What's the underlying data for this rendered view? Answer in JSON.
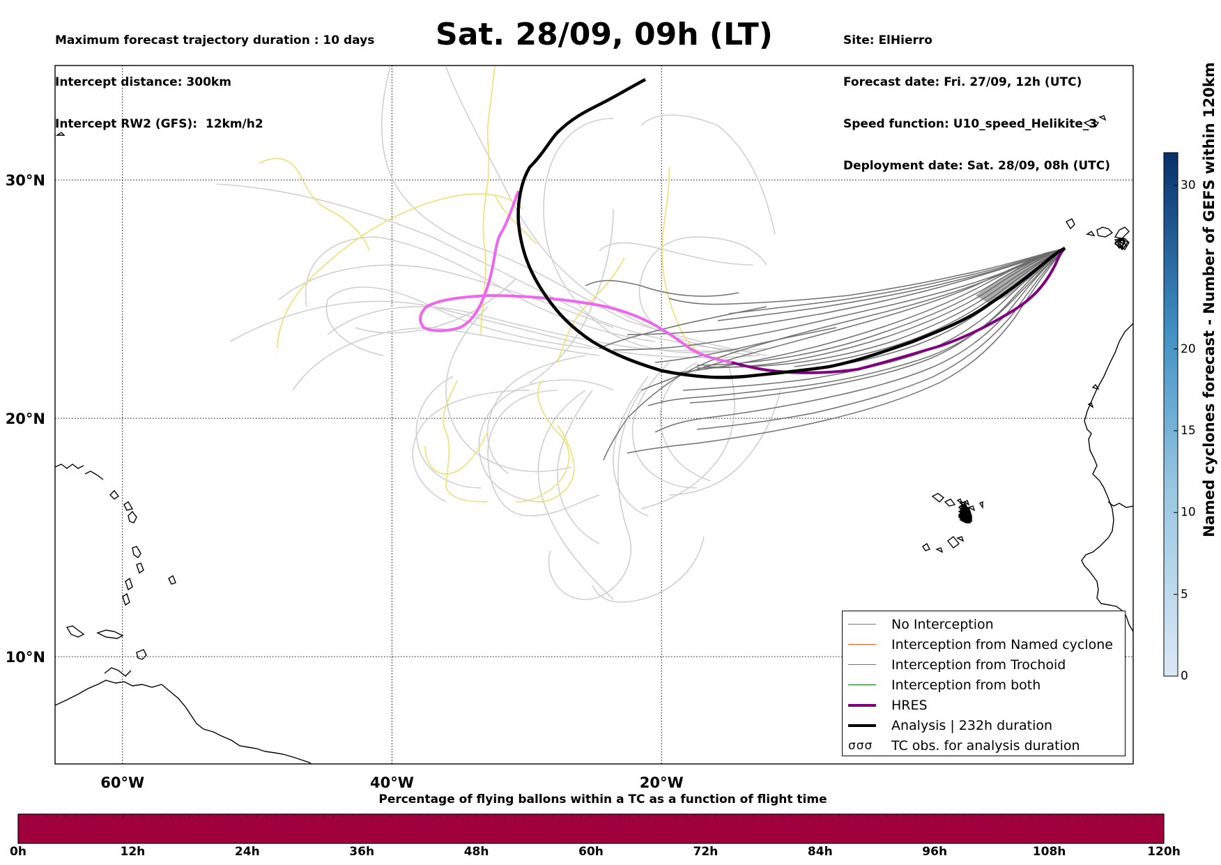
{
  "title": "Sat. 28/09, 09h (LT)",
  "info_left": [
    "Maximum forecast trajectory duration : 10 days",
    "Intercept distance: 300km",
    "Intercept RW2 (GFS):  12km/h2"
  ],
  "info_right": [
    "Site: ElHierro",
    "Forecast date: Fri. 27/09, 12h (UTC)",
    "Speed function: U10_speed_Helikite_3",
    "Deployment date: Sat. 28/09, 08h (UTC)"
  ],
  "map": {
    "lon_range": [
      -65,
      15
    ],
    "lat_range": [
      5.5,
      34.8
    ],
    "lon_ticks": [
      {
        "lon": -60,
        "label": "60°W"
      },
      {
        "lon": -40,
        "label": "40°W"
      },
      {
        "lon": -20,
        "label": "20°W"
      }
    ],
    "lat_ticks": [
      {
        "lat": 30,
        "label": "30°N"
      },
      {
        "lat": 20,
        "label": "20°N"
      },
      {
        "lat": 10,
        "label": "10°N"
      }
    ],
    "colors": {
      "no_interception": "#666666",
      "named_cyclone": "#ff4400",
      "trochoid": "#808000",
      "both": "#008000",
      "hres": "#800080",
      "analysis": "#000000",
      "ensemble_faint": "#cccccc",
      "yellow": "#eee070",
      "pink": "#ee66ee"
    }
  },
  "legend": [
    {
      "label": "No Interception",
      "kind": "line",
      "color": "#777777",
      "width": 1.5
    },
    {
      "label": "Interception from Named cyclone",
      "kind": "line",
      "color": "#ff5a1f",
      "width": 1.5
    },
    {
      "label": "Interception from Trochoid",
      "kind": "line",
      "color": "#808000",
      "width": 1.5
    },
    {
      "label": "Interception from both",
      "kind": "line",
      "color": "#008000",
      "width": 1.5
    },
    {
      "label": "HRES",
      "kind": "line",
      "color": "#800080",
      "width": 4
    },
    {
      "label": "Analysis | 232h duration",
      "kind": "line",
      "color": "#000000",
      "width": 4
    },
    {
      "label": "TC obs. for analysis duration",
      "kind": "symbol",
      "symbol": "σσσ"
    }
  ],
  "colorbar_vertical": {
    "label": "Named cyclones forecast - Number of GEFS within 120km",
    "ticks": [
      "0",
      "5",
      "10",
      "15",
      "20",
      "30"
    ],
    "range": [
      0,
      32
    ]
  },
  "colorbar_horizontal": {
    "title": "Percentage of flying ballons within a TC as a function of flight time",
    "ticks": [
      "0h",
      "12h",
      "24h",
      "36h",
      "48h",
      "60h",
      "72h",
      "84h",
      "96h",
      "108h",
      "120h"
    ],
    "color": "#a0003c"
  }
}
